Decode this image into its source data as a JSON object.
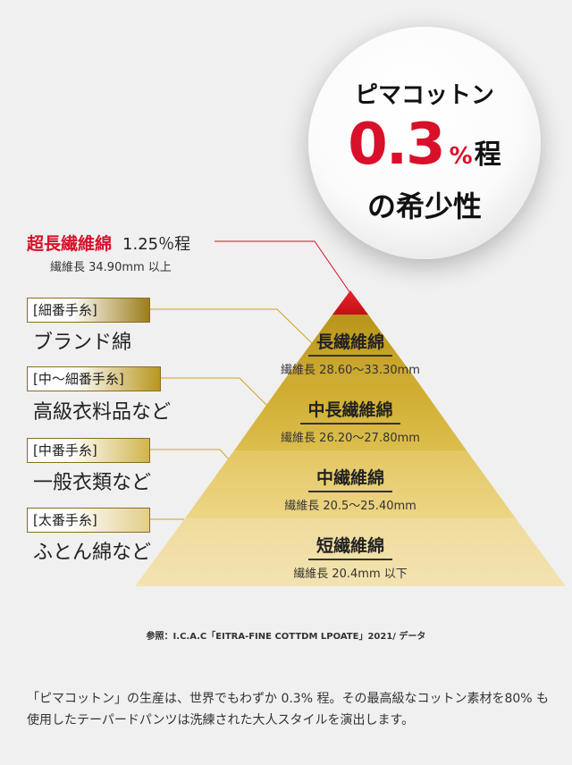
{
  "badge": {
    "title": "ピマコットン",
    "number": "0.3",
    "percent": "%",
    "suffix": "程",
    "subtitle": "の希少性"
  },
  "top_tier": {
    "label": "超長繊維綿",
    "share": "1.25％程",
    "length": "繊維長 34.90mm 以上"
  },
  "tiers": [
    {
      "name": "長繊維綿",
      "length": "繊維長 28.60～33.30mm",
      "tag": "[細番手糸]",
      "category": "ブランド綿"
    },
    {
      "name": "中長繊維綿",
      "length": "繊維長 26.20～27.80mm",
      "tag": "[中～細番手糸]",
      "category": "高級衣料品など"
    },
    {
      "name": "中繊維綿",
      "length": "繊維長 20.5～25.40mm",
      "tag": "[中番手糸]",
      "category": "一般衣類など"
    },
    {
      "name": "短繊維綿",
      "length": "繊維長 20.4mm 以下",
      "tag": "[太番手糸]",
      "category": "ふとん綿など"
    }
  ],
  "source": "参照：I.C.A.C「EITRA-FINE COTTDM LPOATE」2021/ データ",
  "footer": "「ピマコットン」の生産は、世界でもわずか 0.3% 程。その最高級なコットン素材を80% も使用したテーパードパンツは洗練された大人スタイルを演出します。",
  "colors": {
    "accent_red": "#d8102a",
    "tier_top": "#d3181e",
    "tier_1": "#c9a325",
    "tier_2": "#d7b640",
    "tier_3": "#e9d074",
    "tier_4": "#f1e0a6",
    "background": "#f0f0f0"
  }
}
